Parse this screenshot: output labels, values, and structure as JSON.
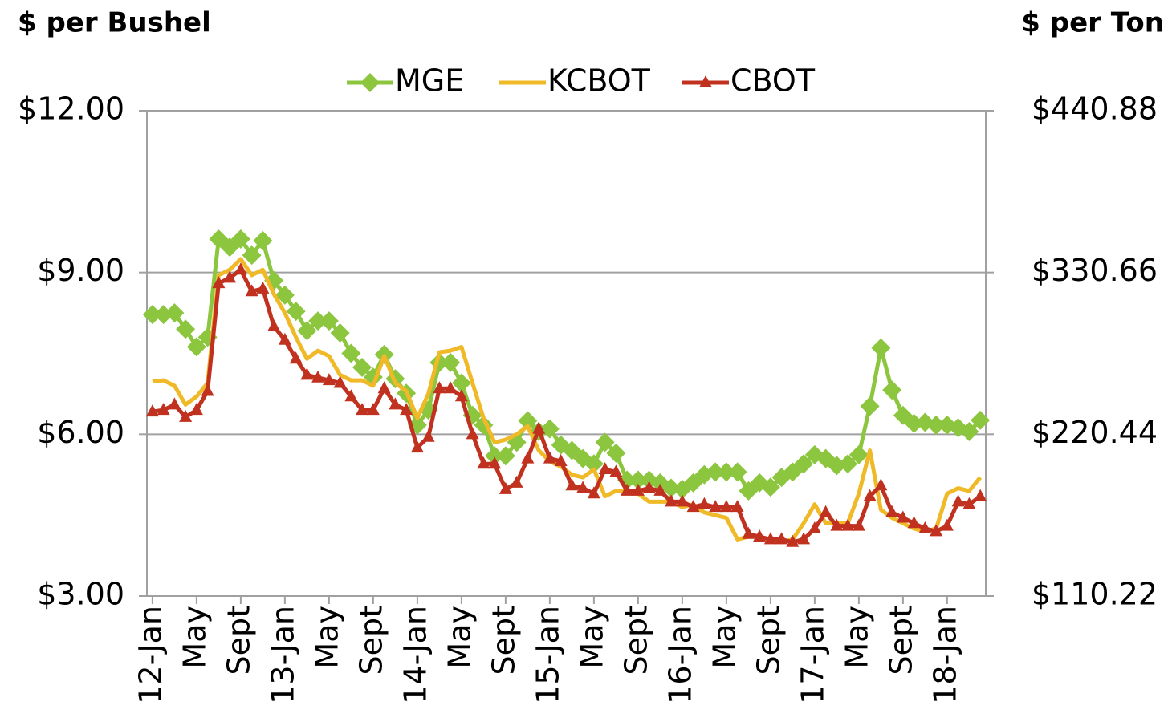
{
  "chart_data": {
    "type": "line",
    "y_axis_label": "$ per Bushel",
    "y2_axis_label": "$ per Ton",
    "categories": [
      "12-Jan",
      null,
      null,
      null,
      "May",
      null,
      null,
      null,
      "Sept",
      null,
      null,
      null,
      "13-Jan",
      null,
      null,
      null,
      "May",
      null,
      null,
      null,
      "Sept",
      null,
      null,
      null,
      "14-Jan",
      null,
      null,
      null,
      "May",
      null,
      null,
      null,
      "Sept",
      null,
      null,
      null,
      "15-Jan",
      null,
      null,
      null,
      "May",
      null,
      null,
      null,
      "Sept",
      null,
      null,
      null,
      "16-Jan",
      null,
      null,
      null,
      "May",
      null,
      null,
      null,
      "Sept",
      null,
      null,
      null,
      "17-Jan",
      null,
      null,
      null,
      "May",
      null,
      null,
      null,
      "Sept",
      null,
      null,
      null,
      "18-Jan",
      null,
      null,
      null
    ],
    "series": [
      {
        "name": "MGE",
        "color": "#8cc63f",
        "marker": "diamond",
        "values": [
          8.22,
          8.22,
          8.25,
          7.95,
          7.62,
          7.8,
          9.62,
          9.47,
          9.62,
          9.32,
          9.59,
          8.85,
          8.58,
          8.28,
          7.92,
          8.1,
          8.1,
          7.88,
          7.5,
          7.24,
          7.06,
          7.48,
          7.03,
          6.76,
          6.17,
          6.45,
          7.33,
          7.33,
          6.95,
          6.35,
          6.17,
          5.6,
          5.6,
          5.85,
          6.25,
          6.05,
          6.1,
          5.8,
          5.7,
          5.55,
          5.45,
          5.85,
          5.65,
          5.15,
          5.15,
          5.15,
          5.1,
          5.0,
          4.98,
          5.1,
          5.25,
          5.3,
          5.3,
          5.3,
          4.95,
          5.1,
          5.02,
          5.2,
          5.3,
          5.45,
          5.62,
          5.55,
          5.42,
          5.45,
          5.62,
          6.52,
          7.6,
          6.82,
          6.35,
          6.2,
          6.22,
          6.17,
          6.17,
          6.12,
          6.05,
          6.26
        ]
      },
      {
        "name": "KCBOT",
        "color": "#f0b928",
        "marker": "none",
        "values": [
          6.98,
          7.0,
          6.9,
          6.55,
          6.7,
          6.95,
          8.95,
          9.05,
          9.25,
          8.95,
          9.05,
          8.6,
          8.25,
          7.8,
          7.4,
          7.55,
          7.45,
          7.1,
          7.0,
          7.0,
          6.9,
          7.45,
          6.95,
          6.8,
          6.3,
          6.75,
          7.52,
          7.55,
          7.62,
          6.95,
          6.3,
          5.85,
          5.9,
          6.0,
          6.15,
          5.7,
          5.5,
          5.4,
          5.25,
          5.2,
          5.35,
          4.85,
          4.95,
          4.95,
          4.9,
          4.75,
          4.75,
          4.75,
          4.65,
          4.7,
          4.55,
          4.5,
          4.45,
          4.05,
          4.1,
          4.1,
          4.05,
          4.0,
          4.05,
          4.35,
          4.7,
          4.35,
          4.35,
          4.35,
          4.9,
          5.7,
          4.6,
          4.45,
          4.35,
          4.25,
          4.2,
          4.25,
          4.9,
          5.0,
          4.95,
          5.2
        ]
      },
      {
        "name": "CBOT",
        "color": "#c0311f",
        "marker": "triangle",
        "values": [
          6.42,
          6.45,
          6.55,
          6.32,
          6.45,
          6.8,
          8.8,
          8.9,
          9.05,
          8.65,
          8.7,
          8.0,
          7.75,
          7.4,
          7.1,
          7.05,
          7.0,
          6.95,
          6.7,
          6.45,
          6.45,
          6.85,
          6.55,
          6.45,
          5.75,
          5.95,
          6.85,
          6.85,
          6.7,
          6.0,
          5.45,
          5.45,
          4.98,
          5.1,
          5.55,
          6.1,
          5.55,
          5.5,
          5.05,
          5.0,
          4.9,
          5.35,
          5.3,
          4.95,
          4.95,
          5.0,
          4.95,
          4.75,
          4.75,
          4.65,
          4.7,
          4.65,
          4.65,
          4.65,
          4.15,
          4.1,
          4.05,
          4.05,
          4.0,
          4.05,
          4.25,
          4.55,
          4.3,
          4.3,
          4.3,
          4.85,
          5.05,
          4.55,
          4.45,
          4.35,
          4.25,
          4.2,
          4.3,
          4.75,
          4.7,
          4.85
        ]
      }
    ],
    "ylim": [
      3,
      12
    ],
    "yticks": [
      {
        "value": 3,
        "label": "$3.00"
      },
      {
        "value": 6,
        "label": "$6.00"
      },
      {
        "value": 9,
        "label": "$9.00"
      },
      {
        "value": 12,
        "label": "$12.00"
      }
    ],
    "y2lim": [
      110.22,
      440.88
    ],
    "y2ticks": [
      {
        "value": 110.22,
        "label": "$110.22"
      },
      {
        "value": 220.44,
        "label": "$220.44"
      },
      {
        "value": 330.66,
        "label": "$330.66"
      },
      {
        "value": 440.88,
        "label": "$440.88"
      }
    ],
    "grid": true,
    "legend": "top"
  }
}
